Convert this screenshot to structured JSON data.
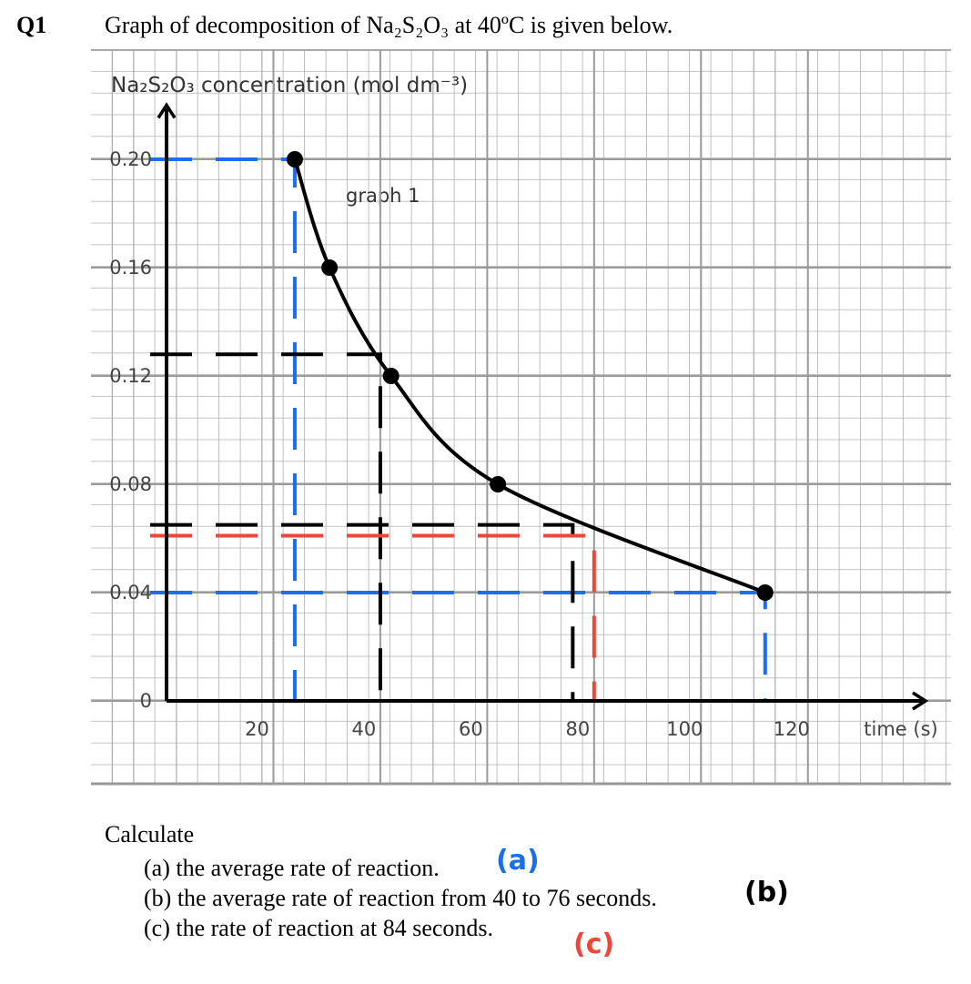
{
  "question": {
    "number": "Q1",
    "text": "Graph of decomposition of Na₂S₂O₃ at 40ºC is given below."
  },
  "chart_data": {
    "type": "line",
    "y_label": "Na₂S₂O₃ concentration (mol dm⁻³)",
    "x_label": "time (s)",
    "annotation": "graph 1",
    "x": [
      24,
      30.5,
      42,
      62,
      112
    ],
    "series": [
      {
        "name": "graph 1",
        "color": "#000000",
        "values": [
          0.2,
          0.16,
          0.12,
          0.08,
          0.04
        ]
      }
    ],
    "xlim": [
      0,
      142
    ],
    "ylim": [
      0,
      0.22
    ],
    "xticks": [
      20,
      40,
      60,
      80,
      100,
      120
    ],
    "yticks": [
      0,
      0.04,
      0.08,
      0.12,
      0.16,
      {
        "value": 0.2,
        "label": "0.20"
      }
    ],
    "grid": true,
    "guides": [
      {
        "x": 24,
        "y": 0.2,
        "color": "#1a6ff0"
      },
      {
        "x": 112,
        "y": 0.04,
        "color": "#1a6ff0"
      },
      {
        "x": 40,
        "y": 0.128,
        "color": "#000000"
      },
      {
        "x": 76,
        "y": 0.065,
        "color": "#000000"
      },
      {
        "x": 80,
        "y": 0.061,
        "color": "#f0463a"
      }
    ]
  },
  "prompt": {
    "lead": "Calculate",
    "items": [
      "(a)  the average rate of reaction.",
      "(b)  the average rate of reaction from 40 to 76 seconds.",
      "(c)  the rate of reaction at 84 seconds."
    ]
  },
  "handwriting": [
    {
      "text": "(a)",
      "color": "#1a6ff0"
    },
    {
      "text": "(b)",
      "color": "#000000"
    },
    {
      "text": "(c)",
      "color": "#f0463a"
    }
  ]
}
